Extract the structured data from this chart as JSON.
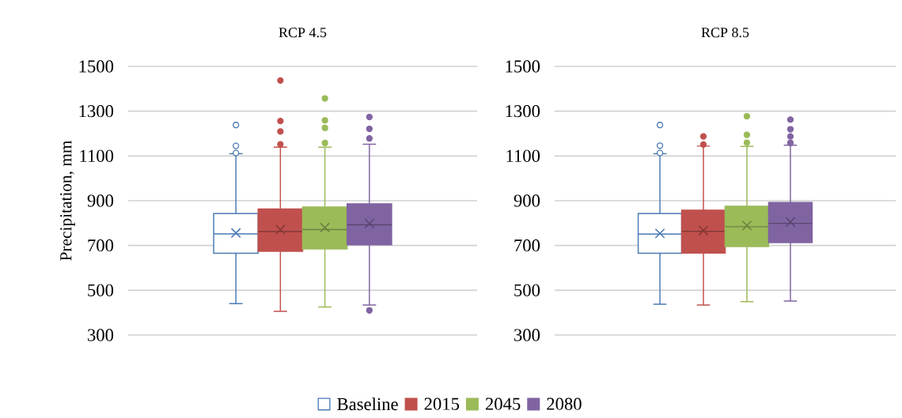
{
  "chart_data": [
    {
      "type": "box",
      "title": "RCP 4.5",
      "ylabel": "Precipitation, mm",
      "categories": [
        null
      ],
      "ylim": [
        300,
        1500
      ],
      "yticks": [
        300,
        500,
        700,
        900,
        1100,
        1300,
        1500
      ],
      "grid": "y",
      "legend": "bottom",
      "marker": "circle",
      "series": [
        {
          "name": "Baseline",
          "color": "#4a7ab5",
          "colors": [
            "#ffffff"
          ],
          "boxes": [
            {
              "low": 440,
              "q1": 665,
              "median": 752,
              "q3": 843,
              "high": 1110,
              "mean": 756,
              "outliers": [
                1238,
                1145,
                1113
              ]
            }
          ]
        },
        {
          "name": "2015",
          "color": "#c0504d",
          "boxes": [
            {
              "low": 406,
              "q1": 674,
              "median": 762,
              "q3": 863,
              "high": 1139,
              "mean": 771,
              "outliers": [
                1437,
                1256,
                1209,
                1152
              ]
            }
          ]
        },
        {
          "name": "2045",
          "color": "#9bbb59",
          "boxes": [
            {
              "low": 425,
              "q1": 685,
              "median": 771,
              "q3": 872,
              "high": 1139,
              "mean": 780,
              "outliers": [
                1357,
                1259,
                1225,
                1158
              ]
            }
          ]
        },
        {
          "name": "2080",
          "color": "#8064a2",
          "boxes": [
            {
              "low": 434,
              "q1": 703,
              "median": 792,
              "q3": 886,
              "high": 1152,
              "mean": 798,
              "outliers": [
                1274,
                1221,
                1178,
                410
              ]
            }
          ]
        }
      ]
    },
    {
      "type": "box",
      "title": "RCP 8.5",
      "categories": [
        null
      ],
      "ylim": [
        300,
        1500
      ],
      "yticks": [
        300,
        500,
        700,
        900,
        1100,
        1300,
        1500
      ],
      "grid": "y",
      "marker": "circle",
      "series": [
        {
          "color": "#4a7ab5",
          "colors": [
            "#ffffff"
          ],
          "boxes": [
            {
              "low": 438,
              "q1": 665,
              "median": 751,
              "q3": 843,
              "high": 1110,
              "mean": 754,
              "outliers": [
                1238,
                1146,
                1113
              ]
            }
          ]
        },
        {
          "color": "#c0504d",
          "boxes": [
            {
              "low": 434,
              "q1": 666,
              "median": 763,
              "q3": 858,
              "high": 1144,
              "mean": 767,
              "outliers": [
                1187,
                1151
              ]
            }
          ]
        },
        {
          "color": "#9bbb59",
          "boxes": [
            {
              "low": 449,
              "q1": 695,
              "median": 784,
              "q3": 875,
              "high": 1143,
              "mean": 789,
              "outliers": [
                1277,
                1194,
                1159
              ]
            }
          ]
        },
        {
          "color": "#8064a2",
          "boxes": [
            {
              "low": 452,
              "q1": 713,
              "median": 799,
              "q3": 892,
              "high": 1148,
              "mean": 805,
              "outliers": [
                1262,
                1219,
                1187,
                1158
              ]
            }
          ]
        }
      ]
    }
  ]
}
